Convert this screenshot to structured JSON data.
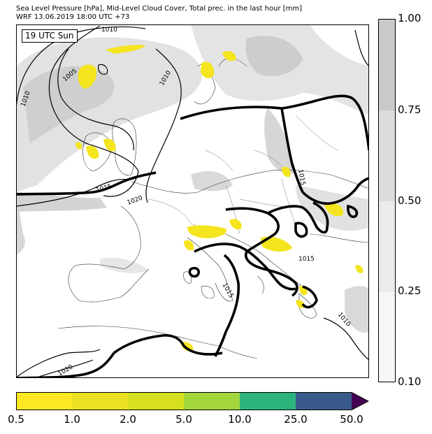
{
  "header": {
    "line1": "Sea Level Pressure [hPa], Mid-Level Cloud Cover, Total prec. in the last hour [mm]",
    "line2": "WRF 13.06.2019 18:00 UTC +73"
  },
  "map": {
    "time_badge": "19 UTC Sun",
    "isobar_labels": [
      "1010",
      "1005",
      "1010",
      "1010",
      "1015",
      "1020",
      "1015",
      "1015",
      "1015",
      "1010",
      "1020"
    ]
  },
  "cloud_legend": {
    "ticks": [
      "1.00",
      "0.75",
      "0.50",
      "0.25",
      "0.10"
    ],
    "colors": [
      "#c9c9c9",
      "#dcdcdc",
      "#ebebeb",
      "#f7f7f7"
    ]
  },
  "precip_legend": {
    "ticks": [
      "0.5",
      "1.0",
      "2.0",
      "5.0",
      "10.0",
      "25.0",
      "50.0"
    ],
    "colors": [
      "#fde725",
      "#ecdf24",
      "#d6e01e",
      "#a2d63c",
      "#2cb47c",
      "#3b5a8c",
      "#440154"
    ]
  },
  "colors": {
    "land": "#ffffff",
    "sea": "#ffffff",
    "isobar": "#000000",
    "precip": "#f4e51f",
    "cloud_light": "#dedede",
    "cloud_dark": "#c8c8c8"
  }
}
